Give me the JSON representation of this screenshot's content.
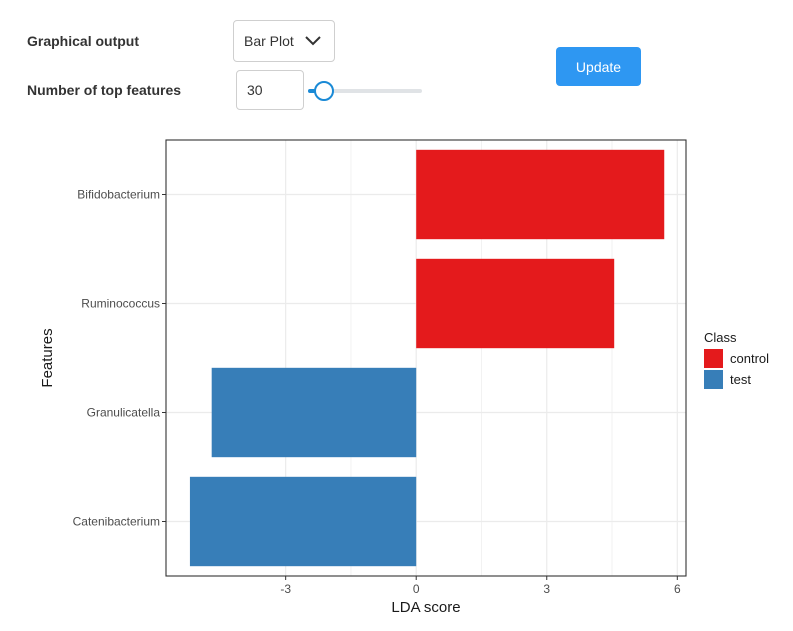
{
  "controls": {
    "graphical_output_label": "Graphical output",
    "graphical_output_value": "Bar Plot",
    "top_features_label": "Number of top features",
    "top_features_value": "30",
    "slider_level": 0.13,
    "update_label": "Update"
  },
  "colors": {
    "control": "#e41a1c",
    "test": "#377eb8",
    "accent": "#2e97f2"
  },
  "chart_data": {
    "type": "bar",
    "orientation": "horizontal",
    "categories": [
      "Bifidobacterium",
      "Ruminococcus",
      "Granulicatella",
      "Catenibacterium"
    ],
    "values": [
      5.7,
      4.55,
      -4.7,
      -5.2
    ],
    "classes": [
      "control",
      "control",
      "test",
      "test"
    ],
    "xlabel": "LDA score",
    "ylabel": "Features",
    "x_ticks": [
      -3,
      0,
      3,
      6
    ],
    "xlim": [
      -5.75,
      6.2
    ],
    "legend": {
      "title": "Class",
      "entries": [
        "control",
        "test"
      ],
      "placement": "right"
    },
    "grid": true
  }
}
